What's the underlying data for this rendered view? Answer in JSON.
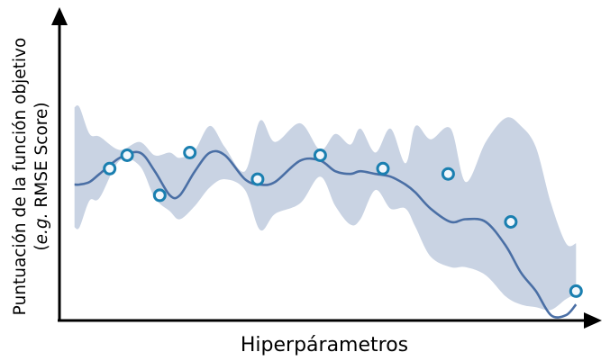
{
  "chart_data": {
    "type": "line",
    "title": "",
    "xlabel": "Hiperpárametros",
    "ylabel": {
      "line1": "Puntuación de la función objetivo",
      "line2_prefix": "(",
      "line2_italic": "e.g.",
      "line2_suffix": " RMSE Score)"
    },
    "ticks": "none",
    "grid": false,
    "colors": {
      "mean_line": "#4a6fa5",
      "band": "#c9d3e3",
      "marker_stroke": "#1a7fb0",
      "marker_fill": "#f2f7fc",
      "axis": "#000000"
    },
    "mean_curve": {
      "x": [
        0,
        1,
        3,
        5,
        9,
        13,
        16,
        19,
        21,
        24,
        27,
        30,
        34,
        37,
        40,
        45,
        49,
        52,
        55,
        57,
        60,
        63,
        66,
        68,
        71,
        75,
        78,
        82,
        86,
        89,
        92,
        95,
        98,
        100
      ],
      "y": [
        0.51,
        0.51,
        0.52,
        0.55,
        0.61,
        0.63,
        0.56,
        0.47,
        0.47,
        0.56,
        0.63,
        0.62,
        0.53,
        0.51,
        0.52,
        0.6,
        0.6,
        0.56,
        0.55,
        0.56,
        0.55,
        0.54,
        0.51,
        0.48,
        0.42,
        0.37,
        0.38,
        0.37,
        0.28,
        0.18,
        0.11,
        0.02,
        0.02,
        0.06
      ]
    },
    "confidence_band": {
      "x": [
        0,
        1,
        3,
        5,
        9,
        13,
        16,
        19,
        21,
        24,
        27,
        30,
        34,
        37,
        40,
        45,
        49,
        52,
        55,
        57,
        60,
        63,
        66,
        68,
        71,
        75,
        78,
        82,
        86,
        89,
        92,
        95,
        98,
        100
      ],
      "upper": [
        0.8,
        0.8,
        0.7,
        0.69,
        0.64,
        0.67,
        0.62,
        0.63,
        0.61,
        0.64,
        0.73,
        0.65,
        0.56,
        0.75,
        0.67,
        0.74,
        0.64,
        0.7,
        0.66,
        0.72,
        0.63,
        0.72,
        0.59,
        0.73,
        0.68,
        0.72,
        0.52,
        0.67,
        0.76,
        0.73,
        0.65,
        0.44,
        0.29,
        0.29
      ],
      "lower": [
        0.35,
        0.35,
        0.45,
        0.46,
        0.6,
        0.58,
        0.46,
        0.41,
        0.38,
        0.43,
        0.5,
        0.53,
        0.49,
        0.34,
        0.4,
        0.44,
        0.54,
        0.43,
        0.36,
        0.38,
        0.49,
        0.42,
        0.42,
        0.35,
        0.24,
        0.2,
        0.2,
        0.17,
        0.09,
        0.06,
        0.05,
        0.04,
        0.08,
        0.1
      ]
    },
    "observations": {
      "x": [
        7,
        10.5,
        17,
        23,
        36.5,
        49,
        61.5,
        74.5,
        87,
        100
      ],
      "y": [
        0.57,
        0.62,
        0.47,
        0.63,
        0.53,
        0.62,
        0.57,
        0.55,
        0.37,
        0.11
      ]
    },
    "xlim": [
      -3,
      103
    ],
    "ylim": [
      0,
      1
    ]
  }
}
